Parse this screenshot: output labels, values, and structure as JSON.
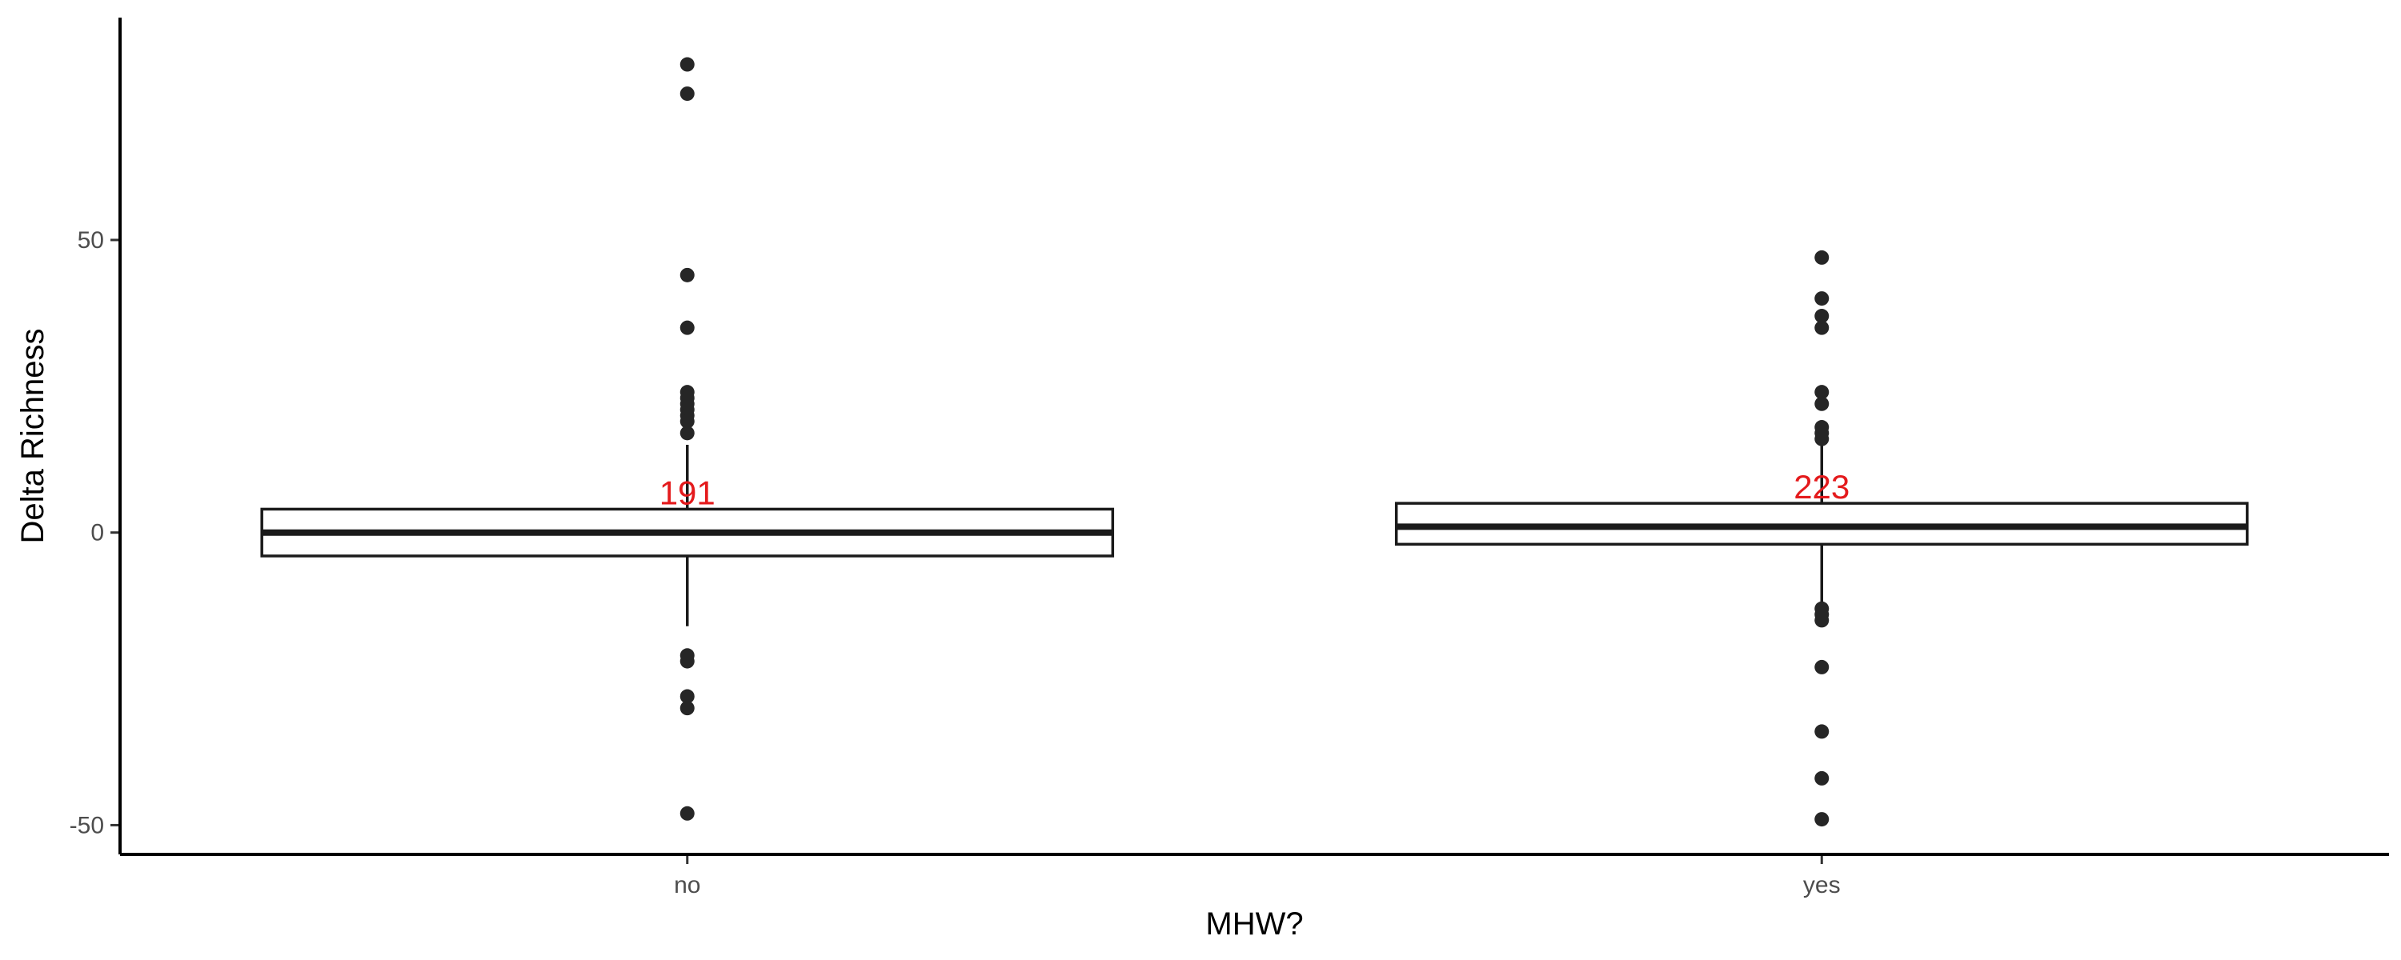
{
  "chart_data": {
    "type": "boxplot",
    "title": "",
    "xlabel": "MHW?",
    "ylabel": "Delta Richness",
    "ylim": [
      -55,
      88
    ],
    "yticks": [
      -50,
      0,
      50
    ],
    "categories": [
      "no",
      "yes"
    ],
    "grid": false,
    "legend": "none",
    "boxes": [
      {
        "category": "no",
        "q1": -4,
        "median": 0,
        "q3": 4,
        "whisker_low": -16,
        "whisker_high": 15,
        "count_label": "191",
        "outliers": [
          80,
          75,
          44,
          35,
          24,
          23,
          22,
          21,
          20,
          19,
          17,
          -21,
          -22,
          -28,
          -30,
          -48
        ]
      },
      {
        "category": "yes",
        "q1": -2,
        "median": 1,
        "q3": 5,
        "whisker_low": -12,
        "whisker_high": 15,
        "count_label": "223",
        "outliers": [
          47,
          40,
          37,
          35,
          24,
          22,
          18,
          17,
          16,
          -13,
          -14,
          -15,
          -23,
          -34,
          -42,
          -49
        ]
      }
    ],
    "colors": {
      "box_fill": "#ffffff",
      "line": "#1a1a1a",
      "points": "#262626",
      "count_label": "#e41a1c",
      "axis": "#000000"
    }
  }
}
